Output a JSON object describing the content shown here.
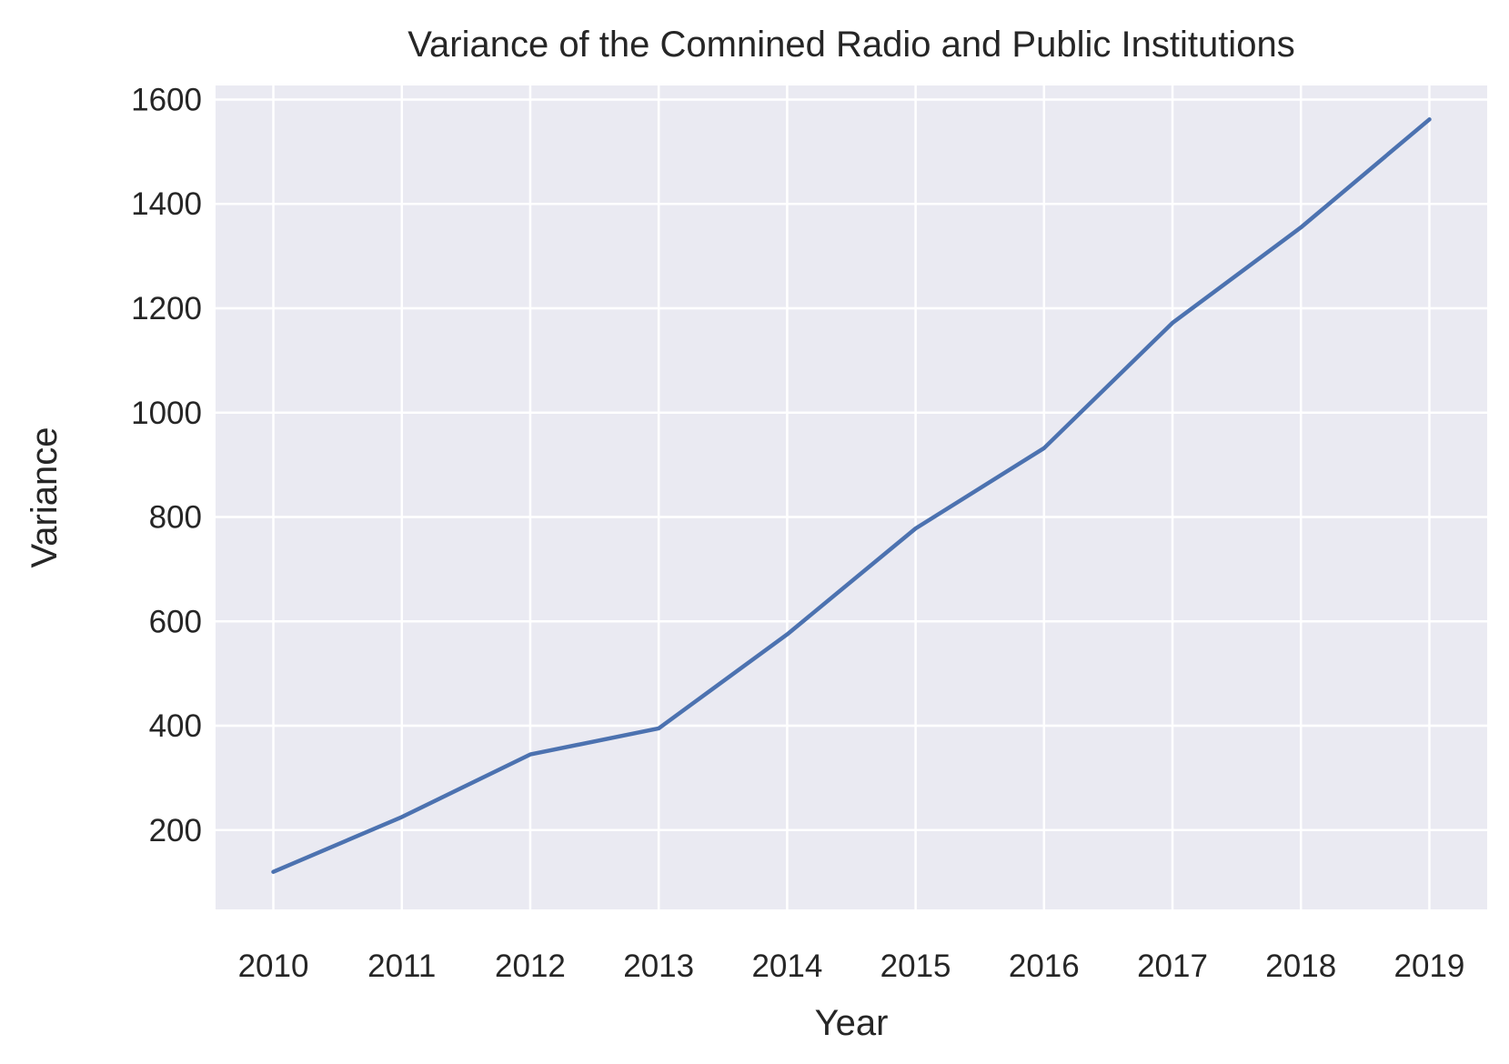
{
  "chart_data": {
    "type": "line",
    "title": "Variance of the Comnined Radio and Public Institutions",
    "xlabel": "Year",
    "ylabel": "Variance",
    "x": [
      2010,
      2011,
      2012,
      2013,
      2014,
      2015,
      2016,
      2017,
      2018,
      2019
    ],
    "series": [
      {
        "values": [
          120,
          225,
          345,
          395,
          575,
          778,
          932,
          1172,
          1355,
          1562
        ],
        "color": "#4c72b0"
      }
    ],
    "xlim": [
      2009.55,
      2019.45
    ],
    "ylim": [
      48,
      1627
    ],
    "yticks": [
      200,
      400,
      600,
      800,
      1000,
      1200,
      1400,
      1600
    ],
    "grid": true,
    "background": "#eaeaf2",
    "grid_color": "#ffffff"
  }
}
